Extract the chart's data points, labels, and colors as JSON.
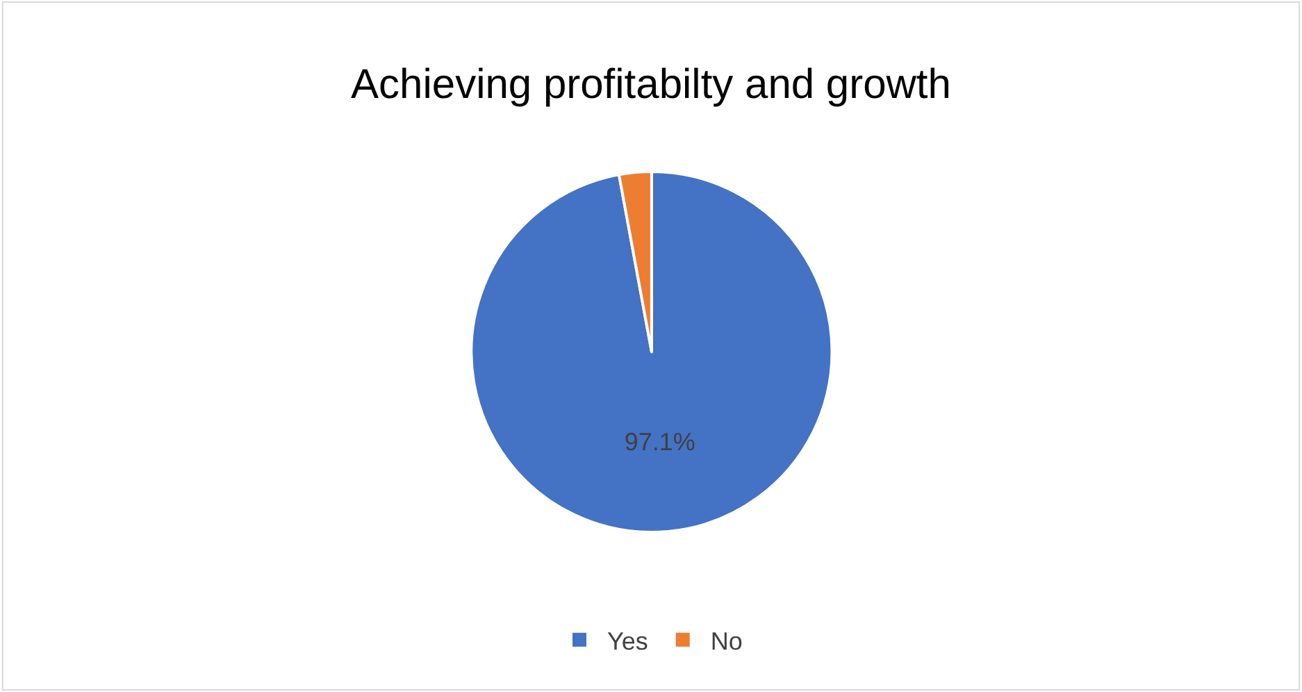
{
  "chart_data": {
    "type": "pie",
    "title": "Achieving profitabilty and growth",
    "categories": [
      "Yes",
      "No"
    ],
    "values": [
      97.1,
      2.9
    ],
    "colors": [
      "#4472c4",
      "#ed7d31"
    ],
    "value_labels": [
      "97.1%",
      null
    ],
    "legend": "bottom"
  }
}
